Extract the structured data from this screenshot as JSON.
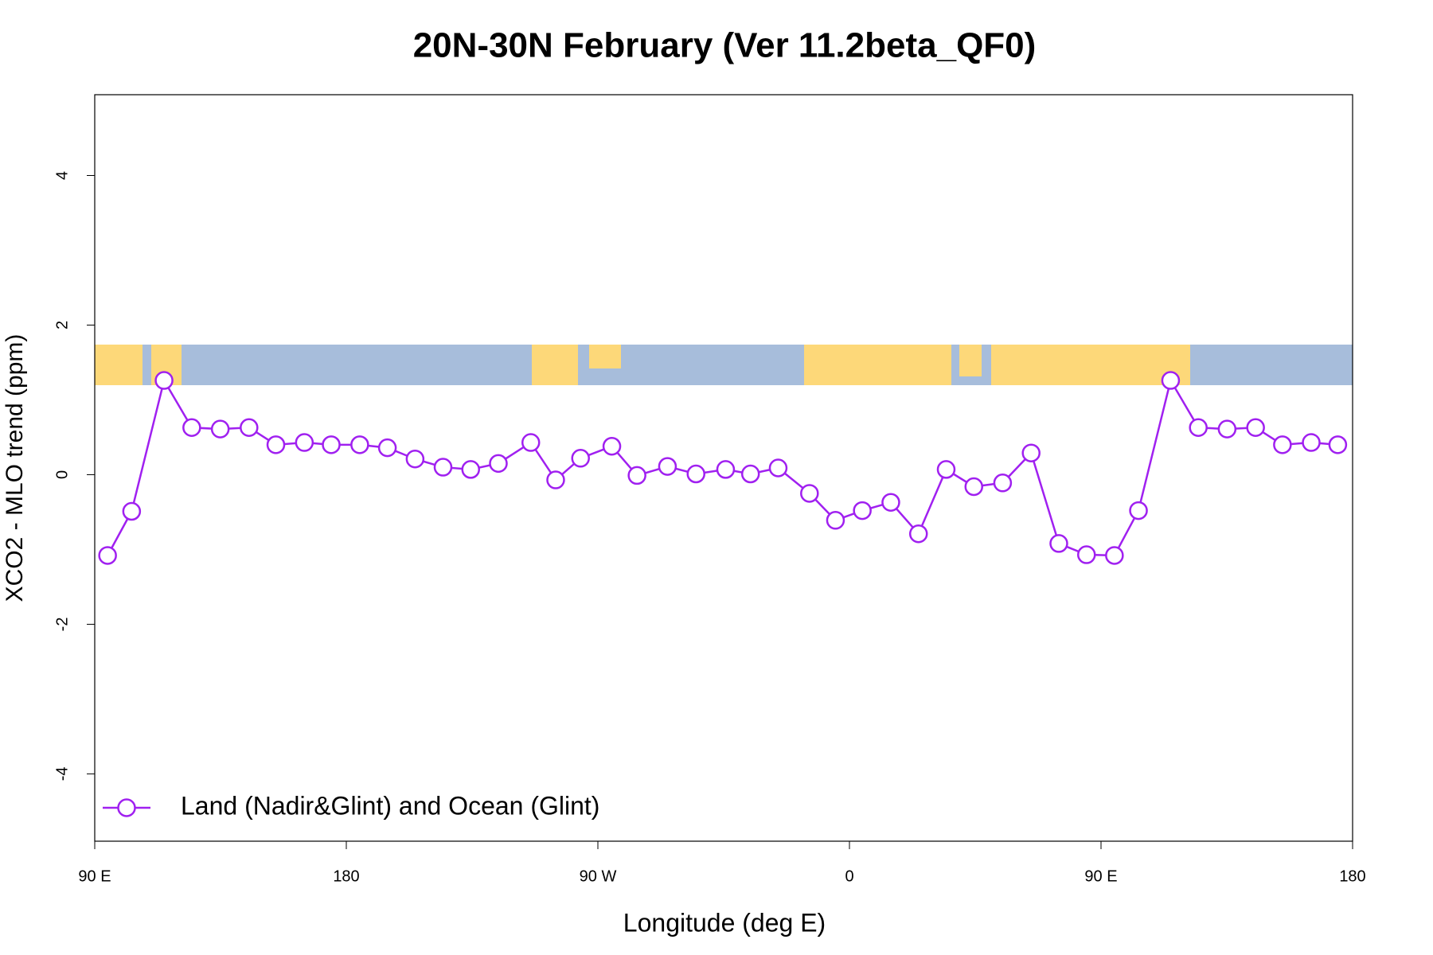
{
  "chart_data": {
    "type": "line",
    "title": "20N-30N February (Ver 11.2beta_QF0)",
    "x_label": "Longitude (deg E)",
    "y_label": "XCO2 - MLO trend (ppm)",
    "xlim": [
      90,
      540
    ],
    "ylim": [
      -4.9,
      5.08
    ],
    "xticks": [
      {
        "value": 90,
        "label": "90 E"
      },
      180,
      {
        "value": 270,
        "label": "90 W"
      },
      {
        "value": 360,
        "label": "0"
      },
      {
        "value": 450,
        "label": "90 E"
      },
      {
        "value": 540,
        "label": "180"
      }
    ],
    "yticks": [
      -4,
      -2,
      0,
      2,
      4
    ],
    "legend_position": "bottom-left",
    "series": [
      {
        "name": "Land (Nadir&Glint) and Ocean (Glint)",
        "color": "#a020f0",
        "x": [
          94.6,
          103.2,
          114.8,
          124.7,
          134.9,
          145.2,
          154.8,
          165.0,
          174.6,
          184.8,
          194.7,
          204.6,
          214.6,
          224.5,
          234.4,
          246.0,
          254.9,
          263.8,
          275.0,
          284.0,
          294.9,
          305.1,
          315.7,
          324.6,
          334.5,
          345.7,
          355.0,
          364.6,
          374.8,
          384.7,
          394.6,
          404.5,
          414.8,
          425.0,
          434.9,
          444.8,
          454.8,
          463.4,
          474.9,
          484.8,
          495.1,
          505.3,
          514.9,
          525.2,
          534.7
        ],
        "values": [
          -1.08,
          -0.49,
          1.26,
          0.63,
          0.61,
          0.63,
          0.4,
          0.43,
          0.4,
          0.4,
          0.36,
          0.21,
          0.1,
          0.07,
          0.15,
          0.43,
          -0.07,
          0.22,
          0.38,
          -0.01,
          0.11,
          0.01,
          0.07,
          0.01,
          0.09,
          -0.25,
          -0.61,
          -0.48,
          -0.37,
          -0.79,
          0.07,
          -0.16,
          -0.11,
          0.29,
          -0.92,
          -1.07,
          -1.08,
          -0.48,
          1.26,
          0.63,
          0.61,
          0.63,
          0.4,
          0.43,
          0.4
        ]
      }
    ]
  }
}
